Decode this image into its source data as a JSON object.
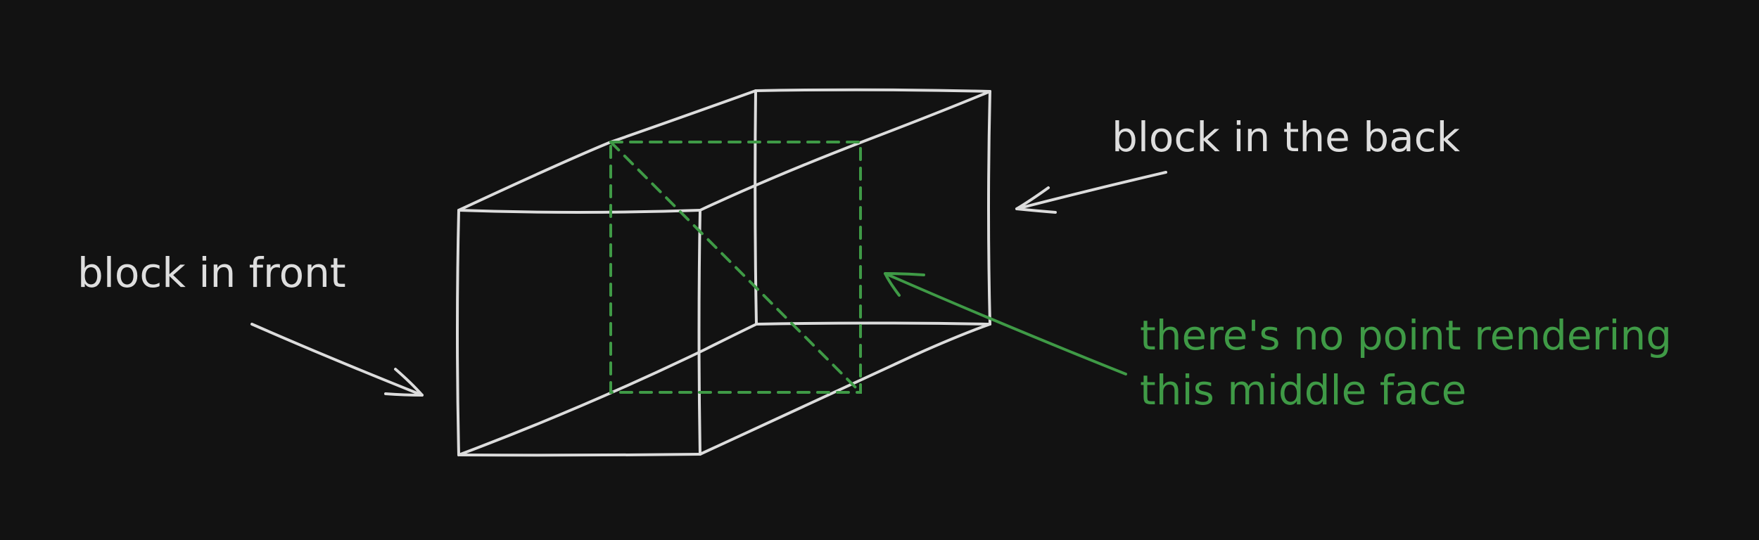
{
  "labels": {
    "front": "block in front",
    "back": "block in the back",
    "note_line1": "there's no point rendering",
    "note_line2": "this middle face"
  },
  "colors": {
    "background": "#121212",
    "stroke": "#dcdcdc",
    "accent_green": "#3f9a46"
  }
}
